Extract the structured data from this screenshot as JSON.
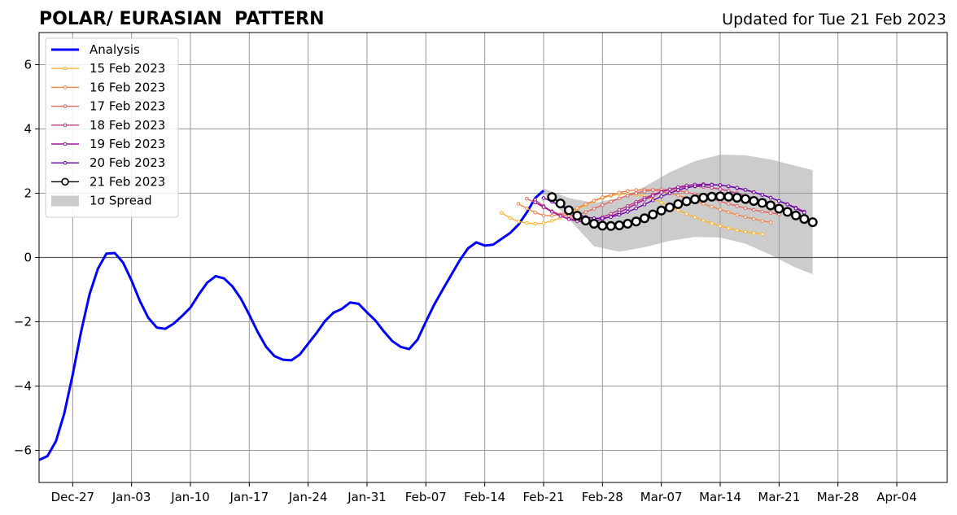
{
  "header": {
    "title": "POLAR/ EURASIAN  PATTERN",
    "updated": "Updated for Tue 21 Feb 2023"
  },
  "colors": {
    "analysis": "#0000ff",
    "spread": "#cccccc",
    "grid": "#999999",
    "zero_line": "#555555",
    "fc_15": "#fdb42f",
    "fc_16": "#f2844b",
    "fc_17": "#e16462",
    "fc_18": "#bf3984",
    "fc_19": "#9c179e",
    "fc_20": "#6a00a8",
    "fc_21": "#000000"
  },
  "chart_data": {
    "type": "line",
    "title": "POLAR/ EURASIAN  PATTERN",
    "subtitle": "Updated for Tue 21 Feb 2023",
    "xlabel": "",
    "ylabel": "",
    "x_unit": "date",
    "x_range": [
      "2022-12-23",
      "2023-04-10"
    ],
    "ylim": [
      -7,
      7
    ],
    "grid": true,
    "legend_position": "top-left",
    "x_ticks": [
      {
        "date": "2022-12-27",
        "label": "Dec-27"
      },
      {
        "date": "2023-01-03",
        "label": "Jan-03"
      },
      {
        "date": "2023-01-10",
        "label": "Jan-10"
      },
      {
        "date": "2023-01-17",
        "label": "Jan-17"
      },
      {
        "date": "2023-01-24",
        "label": "Jan-24"
      },
      {
        "date": "2023-01-31",
        "label": "Jan-31"
      },
      {
        "date": "2023-02-07",
        "label": "Feb-07"
      },
      {
        "date": "2023-02-14",
        "label": "Feb-14"
      },
      {
        "date": "2023-02-21",
        "label": "Feb-21"
      },
      {
        "date": "2023-02-28",
        "label": "Feb-28"
      },
      {
        "date": "2023-03-07",
        "label": "Mar-07"
      },
      {
        "date": "2023-03-14",
        "label": "Mar-14"
      },
      {
        "date": "2023-03-21",
        "label": "Mar-21"
      },
      {
        "date": "2023-03-28",
        "label": "Mar-28"
      },
      {
        "date": "2023-04-04",
        "label": "Apr-04"
      }
    ],
    "y_ticks": [
      {
        "value": 6,
        "label": "6"
      },
      {
        "value": 4,
        "label": "4"
      },
      {
        "value": 2,
        "label": "2"
      },
      {
        "value": 0,
        "label": "0"
      },
      {
        "value": -2,
        "label": "−2"
      },
      {
        "value": -4,
        "label": "−4"
      },
      {
        "value": -6,
        "label": "−6"
      }
    ],
    "analysis": {
      "name": "Analysis",
      "dates": [
        "2022-12-23",
        "2022-12-24",
        "2022-12-25",
        "2022-12-26",
        "2022-12-27",
        "2022-12-28",
        "2022-12-29",
        "2022-12-30",
        "2022-12-31",
        "2023-01-01",
        "2023-01-02",
        "2023-01-03",
        "2023-01-04",
        "2023-01-05",
        "2023-01-06",
        "2023-01-07",
        "2023-01-08",
        "2023-01-09",
        "2023-01-10",
        "2023-01-11",
        "2023-01-12",
        "2023-01-13",
        "2023-01-14",
        "2023-01-15",
        "2023-01-16",
        "2023-01-17",
        "2023-01-18",
        "2023-01-19",
        "2023-01-20",
        "2023-01-21",
        "2023-01-22",
        "2023-01-23",
        "2023-01-24",
        "2023-01-25",
        "2023-01-26",
        "2023-01-27",
        "2023-01-28",
        "2023-01-29",
        "2023-01-30",
        "2023-01-31",
        "2023-02-01",
        "2023-02-02",
        "2023-02-03",
        "2023-02-04",
        "2023-02-05",
        "2023-02-06",
        "2023-02-07",
        "2023-02-08",
        "2023-02-09",
        "2023-02-10",
        "2023-02-11",
        "2023-02-12",
        "2023-02-13",
        "2023-02-14",
        "2023-02-15",
        "2023-02-16",
        "2023-02-17",
        "2023-02-18",
        "2023-02-19",
        "2023-02-20",
        "2023-02-21"
      ],
      "values": [
        -6.3,
        -6.18,
        -5.72,
        -4.85,
        -3.65,
        -2.3,
        -1.15,
        -0.35,
        0.12,
        0.14,
        -0.16,
        -0.72,
        -1.36,
        -1.88,
        -2.18,
        -2.22,
        -2.06,
        -1.82,
        -1.56,
        -1.15,
        -0.78,
        -0.58,
        -0.65,
        -0.9,
        -1.28,
        -1.78,
        -2.32,
        -2.78,
        -3.07,
        -3.18,
        -3.2,
        -3.02,
        -2.68,
        -2.35,
        -1.98,
        -1.72,
        -1.6,
        -1.4,
        -1.44,
        -1.71,
        -1.96,
        -2.3,
        -2.6,
        -2.78,
        -2.85,
        -2.56,
        -2.0,
        -1.46,
        -1.0,
        -0.55,
        -0.1,
        0.28,
        0.47,
        0.37,
        0.4,
        0.58,
        0.76,
        1.02,
        1.4,
        1.85,
        2.08
      ]
    },
    "spread": {
      "name": "1σ Spread",
      "dates": [
        "2023-02-21",
        "2023-02-24",
        "2023-02-27",
        "2023-03-02",
        "2023-03-05",
        "2023-03-08",
        "2023-03-11",
        "2023-03-14",
        "2023-03-17",
        "2023-03-20",
        "2023-03-23",
        "2023-03-25"
      ],
      "upper": [
        2.15,
        1.85,
        1.7,
        1.85,
        2.2,
        2.65,
        3.0,
        3.2,
        3.18,
        3.05,
        2.85,
        2.72
      ],
      "lower": [
        2.0,
        1.2,
        0.35,
        0.18,
        0.32,
        0.52,
        0.64,
        0.62,
        0.43,
        0.08,
        -0.32,
        -0.52
      ]
    },
    "series": [
      {
        "name": "15 Feb 2023",
        "color_key": "fc_15",
        "start": "2023-02-16",
        "values": [
          1.39,
          1.23,
          1.12,
          1.07,
          1.05,
          1.07,
          1.14,
          1.24,
          1.37,
          1.5,
          1.63,
          1.75,
          1.85,
          1.92,
          1.97,
          1.98,
          1.96,
          1.91,
          1.82,
          1.71,
          1.59,
          1.47,
          1.36,
          1.25,
          1.15,
          1.06,
          0.98,
          0.91,
          0.85,
          0.8,
          0.76,
          0.73
        ]
      },
      {
        "name": "16 Feb 2023",
        "color_key": "fc_16",
        "start": "2023-02-18",
        "values": [
          1.67,
          1.53,
          1.4,
          1.31,
          1.3,
          1.34,
          1.43,
          1.54,
          1.66,
          1.77,
          1.87,
          1.95,
          2.02,
          2.07,
          2.1,
          2.11,
          2.1,
          2.06,
          2.0,
          1.93,
          1.85,
          1.76,
          1.67,
          1.58,
          1.49,
          1.41,
          1.33,
          1.26,
          1.2,
          1.14,
          1.09
        ]
      },
      {
        "name": "17 Feb 2023",
        "color_key": "fc_17",
        "start": "2023-02-19",
        "values": [
          1.83,
          1.71,
          1.56,
          1.44,
          1.34,
          1.3,
          1.33,
          1.41,
          1.52,
          1.63,
          1.74,
          1.84,
          1.93,
          2.0,
          2.06,
          2.1,
          2.12,
          2.11,
          2.08,
          2.03,
          1.97,
          1.9,
          1.83,
          1.75,
          1.67,
          1.6,
          1.54,
          1.48,
          1.43,
          1.39,
          1.35
        ]
      },
      {
        "name": "18 Feb 2023",
        "color_key": "fc_18",
        "start": "2023-02-20",
        "values": [
          1.79,
          1.6,
          1.43,
          1.3,
          1.21,
          1.16,
          1.15,
          1.18,
          1.26,
          1.36,
          1.48,
          1.6,
          1.73,
          1.85,
          1.96,
          2.05,
          2.12,
          2.17,
          2.2,
          2.21,
          2.2,
          2.17,
          2.13,
          2.07,
          2.0,
          1.92,
          1.84,
          1.75,
          1.66,
          1.57,
          1.48
        ]
      },
      {
        "name": "19 Feb 2023",
        "color_key": "fc_19",
        "start": "2023-02-20",
        "values": [
          1.72,
          1.57,
          1.42,
          1.29,
          1.19,
          1.13,
          1.11,
          1.13,
          1.19,
          1.28,
          1.4,
          1.53,
          1.67,
          1.8,
          1.92,
          2.03,
          2.12,
          2.19,
          2.24,
          2.27,
          2.28,
          2.27,
          2.25,
          2.21,
          2.16,
          2.1,
          2.03,
          1.95,
          1.86,
          1.76,
          1.66,
          1.55,
          1.43
        ]
      },
      {
        "name": "20 Feb 2023",
        "color_key": "fc_20",
        "start": "2023-02-21",
        "values": [
          1.85,
          1.74,
          1.6,
          1.46,
          1.34,
          1.26,
          1.22,
          1.22,
          1.26,
          1.33,
          1.42,
          1.53,
          1.65,
          1.78,
          1.9,
          2.0,
          2.1,
          2.17,
          2.22,
          2.25,
          2.26,
          2.25,
          2.22,
          2.17,
          2.11,
          2.03,
          1.95,
          1.86,
          1.76,
          1.65,
          1.53,
          1.4
        ]
      },
      {
        "name": "21 Feb 2023",
        "color_key": "fc_21",
        "start": "2023-02-22",
        "values": [
          1.88,
          1.68,
          1.47,
          1.3,
          1.15,
          1.05,
          0.99,
          0.98,
          1.0,
          1.05,
          1.12,
          1.22,
          1.34,
          1.46,
          1.56,
          1.66,
          1.75,
          1.81,
          1.86,
          1.89,
          1.9,
          1.89,
          1.86,
          1.82,
          1.76,
          1.7,
          1.62,
          1.52,
          1.42,
          1.31,
          1.2,
          1.1
        ]
      }
    ]
  }
}
